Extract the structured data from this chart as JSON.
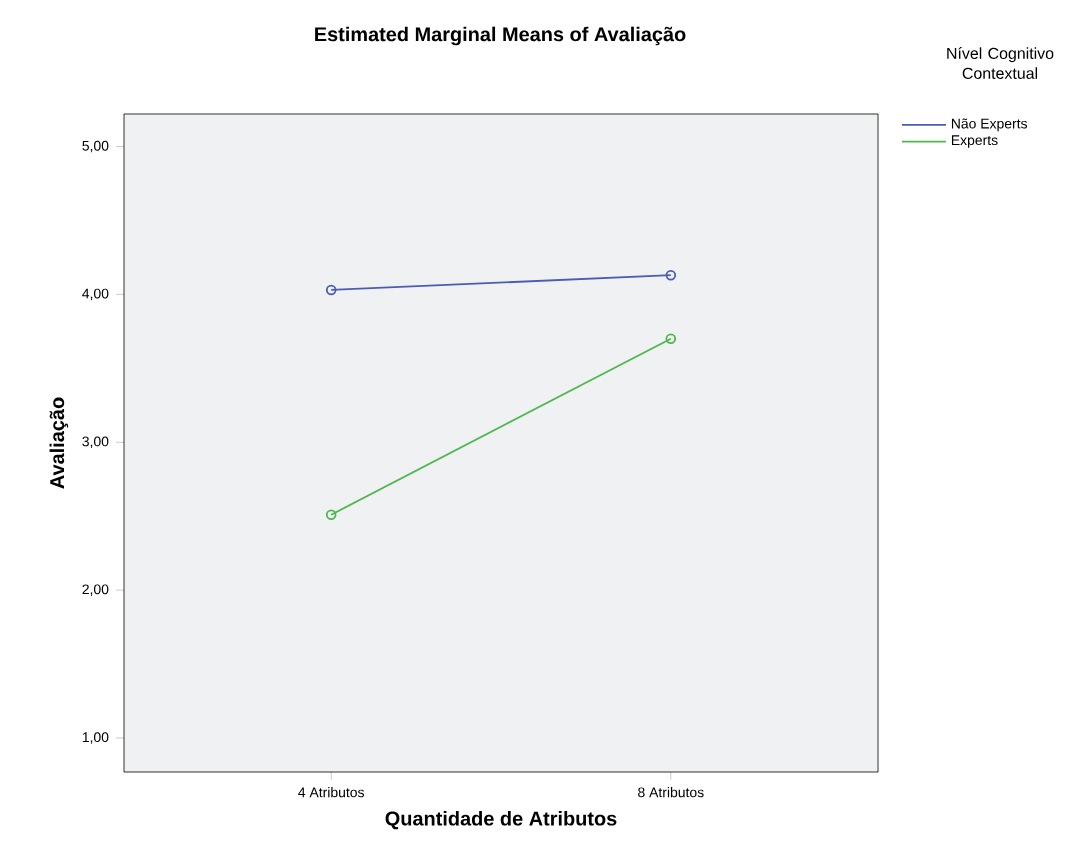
{
  "chart_data": {
    "type": "line",
    "title": "Estimated Marginal Means of Avaliação",
    "xlabel": "Quantidade de Atributos",
    "ylabel": "Avaliação",
    "legend_title": "Nível Cognitivo Contextual",
    "categories": [
      "4 Atributos",
      "8 Atributos"
    ],
    "series": [
      {
        "name": "Não Experts",
        "color": "#4a5cb4",
        "values": [
          4.03,
          4.13
        ]
      },
      {
        "name": "Experts",
        "color": "#4cb84c",
        "values": [
          2.51,
          3.7
        ]
      }
    ],
    "ylim": [
      0.77,
      5.22
    ],
    "yticks": [
      {
        "value": 1,
        "label": "1,00"
      },
      {
        "value": 2,
        "label": "2,00"
      },
      {
        "value": 3,
        "label": "3,00"
      },
      {
        "value": 4,
        "label": "4,00"
      },
      {
        "value": 5,
        "label": "5,00"
      }
    ],
    "marker": "circle",
    "line_style": "solid",
    "legend": "top right"
  }
}
